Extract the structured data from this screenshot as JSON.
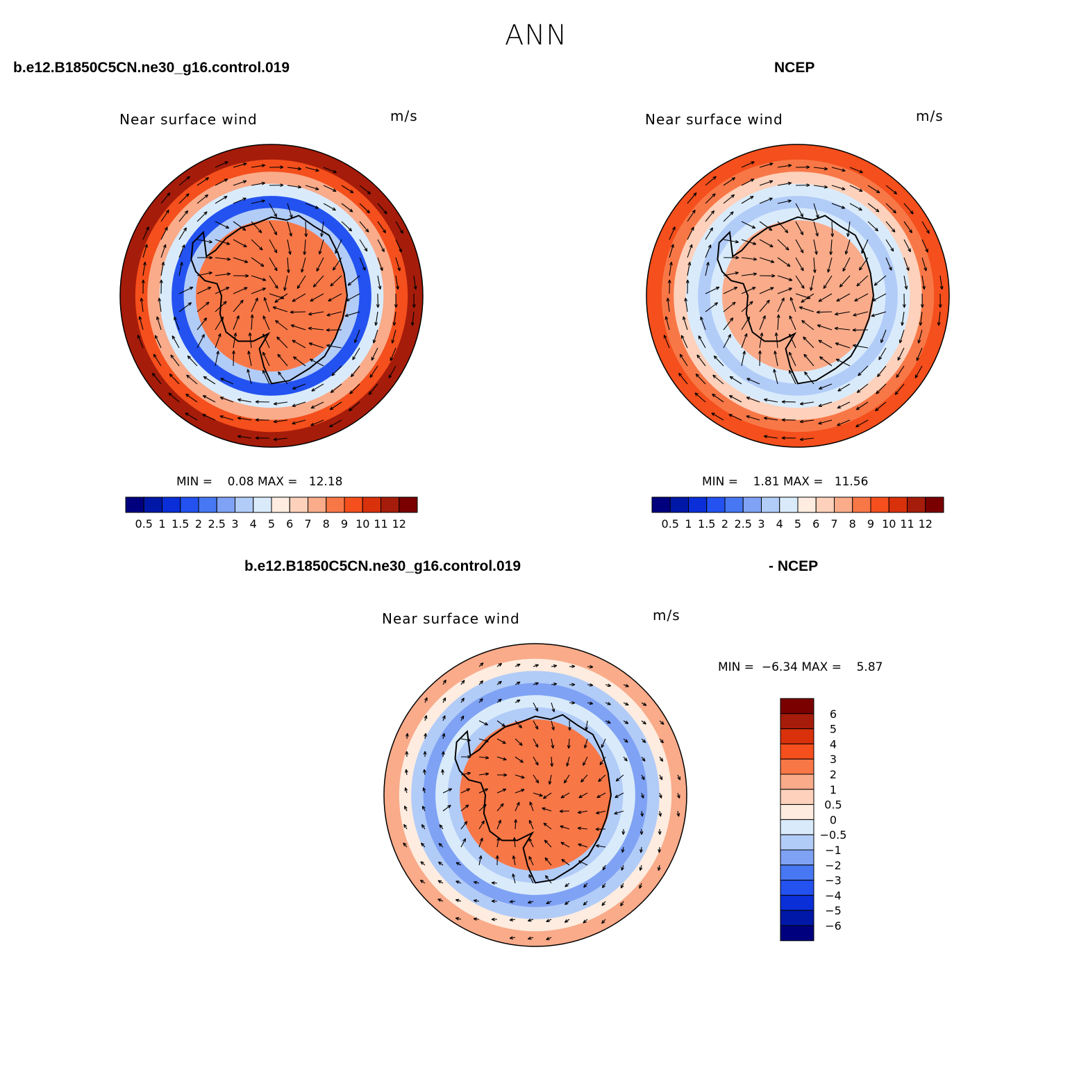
{
  "figure": {
    "main_title": "ANN",
    "top_left_case": "b.e12.B1850C5CN.ne30_g16.control.019",
    "top_right_case": "NCEP",
    "diff_case_left": "b.e12.B1850C5CN.ne30_g16.control.019",
    "diff_case_right": "- NCEP"
  },
  "colors": {
    "abs_scale": [
      "#00007f",
      "#0018a8",
      "#0a2fd8",
      "#2352f0",
      "#4777f2",
      "#7fa2f4",
      "#b2ccf8",
      "#d9ebfb",
      "#fdecdf",
      "#fdd1bb",
      "#f9ab8a",
      "#f87747",
      "#f44f1c",
      "#d8310c",
      "#a61c0a",
      "#7a0000"
    ],
    "diff_scale": [
      "#00007f",
      "#0018a8",
      "#0a2fd8",
      "#2352f0",
      "#4777f2",
      "#7fa2f4",
      "#b2ccf8",
      "#d9ebfb",
      "#fdecdf",
      "#fdd1bb",
      "#f9ab8a",
      "#f87747",
      "#f44f1c",
      "#d8310c",
      "#a61c0a",
      "#7a0000"
    ],
    "outline": "#000000"
  },
  "chart_data": [
    {
      "type": "heatmap",
      "projection": "south polar stereographic",
      "title": "Near surface wind",
      "units": "m/s",
      "case": "b.e12.B1850C5CN.ne30_g16.control.019",
      "min_label": "MIN =",
      "min_value": "0.08",
      "max_label": "MAX =",
      "max_value": "12.18",
      "contour_levels": [
        "0.5",
        "1",
        "1.5",
        "2",
        "2.5",
        "3",
        "4",
        "5",
        "6",
        "7",
        "8",
        "9",
        "10",
        "11",
        "12"
      ],
      "ring_values": [
        11,
        9,
        7,
        4,
        1.5,
        3,
        8
      ],
      "vectors": "wind vectors (m/s)"
    },
    {
      "type": "heatmap",
      "projection": "south polar stereographic",
      "title": "Near surface wind",
      "units": "m/s",
      "case": "NCEP",
      "min_label": "MIN =",
      "min_value": "1.81",
      "max_label": "MAX =",
      "max_value": "11.56",
      "contour_levels": [
        "0.5",
        "1",
        "1.5",
        "2",
        "2.5",
        "3",
        "4",
        "5",
        "6",
        "7",
        "8",
        "9",
        "10",
        "11",
        "12"
      ],
      "ring_values": [
        9,
        8,
        6,
        4,
        3,
        4,
        7
      ],
      "vectors": "wind vectors (m/s)"
    },
    {
      "type": "heatmap",
      "projection": "south polar stereographic",
      "title": "Near surface wind",
      "units": "m/s",
      "case": "b.e12.B1850C5CN.ne30_g16.control.019 - NCEP",
      "min_label": "MIN =",
      "min_value": "−6.34",
      "max_label": "MAX =",
      "max_value": "5.87",
      "contour_levels": [
        "−6",
        "−5",
        "−4",
        "−3",
        "−2",
        "−1",
        "−0.5",
        "0",
        "0.5",
        "1",
        "2",
        "3",
        "4",
        "5",
        "6"
      ],
      "ring_values": [
        1,
        0.2,
        -1,
        -2,
        -0.5,
        -1,
        2
      ],
      "vectors": "wind vector difference (m/s)"
    }
  ]
}
